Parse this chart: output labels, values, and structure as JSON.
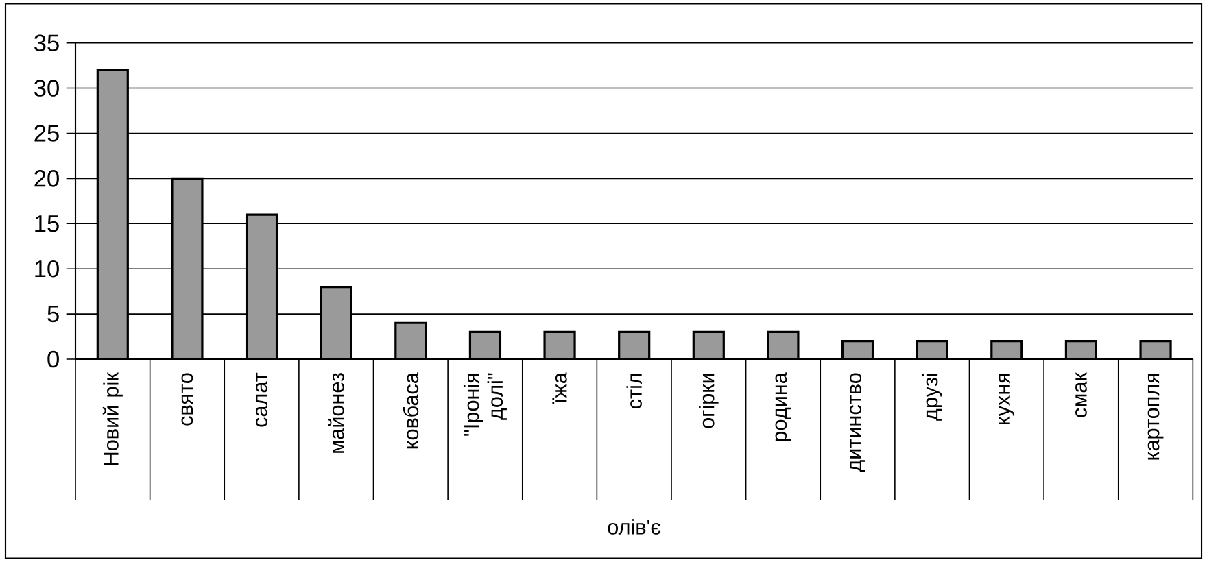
{
  "chart_data": {
    "type": "bar",
    "xlabel": "олів'є",
    "categories": [
      "Новий рік",
      "свято",
      "салат",
      "майонез",
      "ковбаса",
      "\"Іронія долі\"",
      "їжа",
      "стіл",
      "огірки",
      "родина",
      "дитинство",
      "друзі",
      "кухня",
      "смак",
      "картопля"
    ],
    "values": [
      32,
      20,
      16,
      8,
      4,
      3,
      3,
      3,
      3,
      3,
      2,
      2,
      2,
      2,
      2
    ],
    "color": "#9a9a9a",
    "ylim": [
      0,
      35
    ],
    "yticks": [
      0,
      5,
      10,
      15,
      20,
      25,
      30,
      35
    ],
    "grid": "y"
  }
}
